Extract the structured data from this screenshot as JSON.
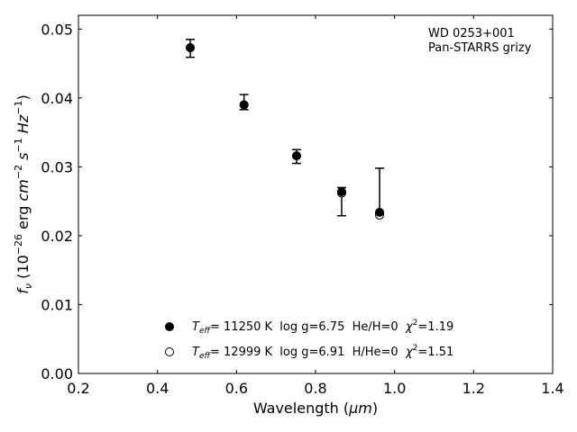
{
  "chart_data": {
    "type": "scatter",
    "xlabel_text": "Wavelength (",
    "xlabel_unit": "μm",
    "xlabel_close": ")",
    "ylabel_main": "f",
    "ylabel_sub": "ν",
    "ylabel_rest_1": " (10",
    "ylabel_sup_1": "−26",
    "ylabel_rest_2": " erg ",
    "ylabel_cm": "cm",
    "ylabel_sup_2": "−2",
    "ylabel_s": " s",
    "ylabel_sup_3": "−1",
    "ylabel_hz": " Hz",
    "ylabel_sup_4": "−1",
    "ylabel_close": ")",
    "xlim": [
      0.2,
      1.4
    ],
    "ylim": [
      0.0,
      0.052
    ],
    "xticks": [
      "0.2",
      "0.4",
      "0.6",
      "0.8",
      "1.0",
      "1.2",
      "1.4"
    ],
    "yticks": [
      "0.00",
      "0.01",
      "0.02",
      "0.03",
      "0.04",
      "0.05"
    ],
    "annotation": [
      "WD 0253+001",
      "Pan-STARRS grizy"
    ],
    "observed": {
      "x": [
        0.483,
        0.619,
        0.752,
        0.866,
        0.962
      ],
      "y_top": [
        0.0485,
        0.0405,
        0.0325,
        0.027,
        0.0298
      ],
      "y_bottom": [
        0.0459,
        0.0383,
        0.0305,
        0.0229,
        0.023
      ]
    },
    "series": [
      {
        "style": "filled",
        "x": [
          0.483,
          0.619,
          0.752,
          0.866,
          0.962
        ],
        "y": [
          0.0473,
          0.039,
          0.0316,
          0.0264,
          0.0234
        ]
      },
      {
        "style": "open",
        "x": [
          0.483,
          0.619,
          0.752,
          0.866,
          0.962
        ],
        "y": [
          0.0473,
          0.039,
          0.0316,
          0.0262,
          0.023
        ]
      }
    ],
    "legend": [
      {
        "teff_symbol": "T",
        "teff_sub": "eff",
        "text": "= 11250 K  log g=6.75  He/H=0  ",
        "chi_symbol": "χ",
        "chi_sup": "2",
        "chi_value": "=1.19"
      },
      {
        "teff_symbol": "T",
        "teff_sub": "eff",
        "text": "= 12999 K  log g=6.91  H/He=0  ",
        "chi_symbol": "χ",
        "chi_sup": "2",
        "chi_value": "=1.51"
      }
    ],
    "legend_position": "lower-center"
  }
}
